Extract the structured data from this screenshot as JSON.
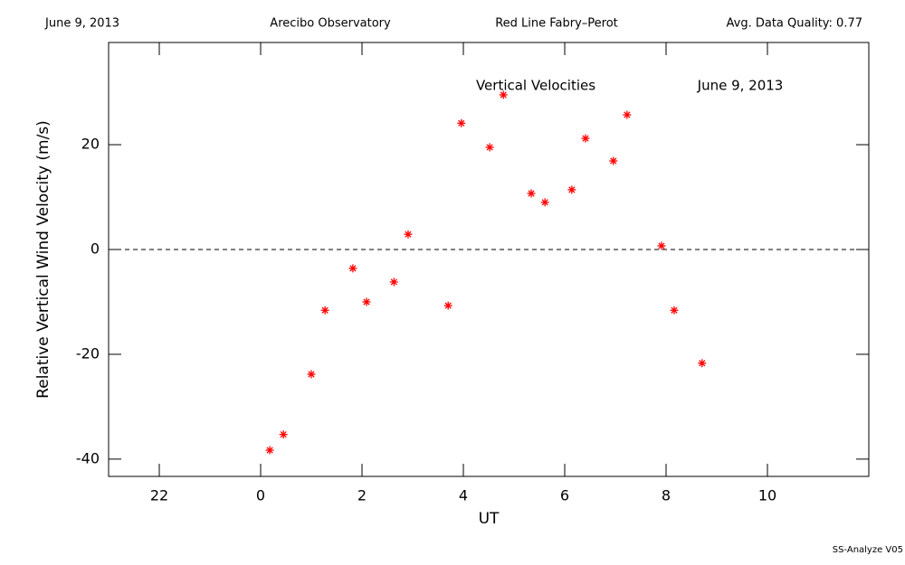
{
  "chart_data": {
    "type": "scatter",
    "header": [
      "June 9, 2013",
      "Arecibo Observatory",
      "Red Line Fabry–Perot",
      "Avg. Data Quality: 0.77"
    ],
    "annotations": [
      "Vertical Velocities",
      "June 9, 2013"
    ],
    "footer": "SS-Analyze V05",
    "x_label": "UT",
    "y_label": "Relative Vertical Wind Velocity (m/s)",
    "xlim": [
      -3,
      12
    ],
    "xticks": [
      {
        "value": -2,
        "label": "22"
      },
      0,
      2,
      4,
      6,
      8,
      10
    ],
    "ylim": [
      -43.3,
      39.5
    ],
    "yticks": [
      -40,
      -20,
      0,
      20
    ],
    "reference_line": 0,
    "color": "#ff0000",
    "x": [
      0.18,
      0.45,
      1.0,
      1.27,
      1.82,
      2.09,
      2.63,
      2.91,
      3.7,
      3.96,
      4.52,
      4.79,
      5.34,
      5.61,
      6.14,
      6.41,
      6.96,
      7.23,
      7.91,
      8.16,
      8.71
    ],
    "values": [
      -38.3,
      -35.3,
      -23.8,
      -11.6,
      -3.6,
      -10.0,
      -6.2,
      2.9,
      -10.7,
      24.1,
      19.5,
      29.5,
      10.7,
      9.0,
      11.4,
      21.2,
      16.9,
      25.7,
      0.7,
      -11.6,
      -21.7
    ]
  }
}
